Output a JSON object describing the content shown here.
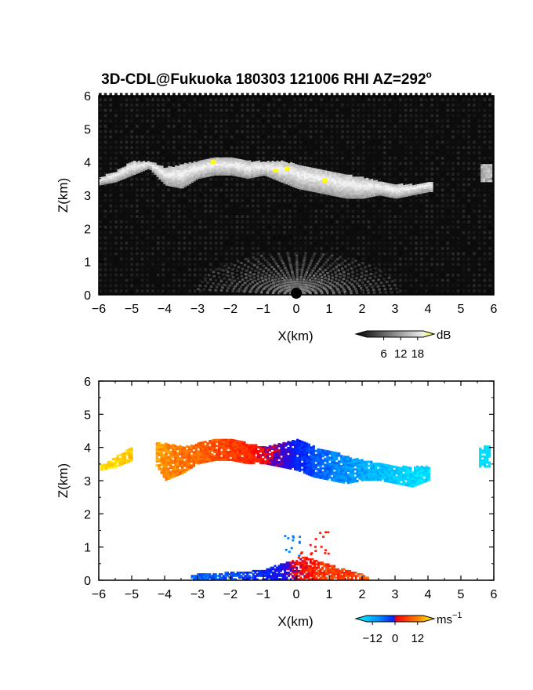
{
  "title": "3D-CDL@Fukuoka 180303 121006 RHI AZ=292",
  "title_suffix": "o",
  "chart_data": [
    {
      "type": "heatmap",
      "panel": "reflectivity",
      "xlabel": "X(km)",
      "ylabel": "Z(km)",
      "xlim": [
        -6,
        6
      ],
      "ylim": [
        0,
        6
      ],
      "xticks": [
        "-6",
        "-5",
        "-4",
        "-3",
        "-2",
        "-1",
        "0",
        "1",
        "2",
        "3",
        "4",
        "5",
        "6"
      ],
      "yticks": [
        "0",
        "1",
        "2",
        "3",
        "4",
        "5",
        "6"
      ],
      "colorbar": {
        "unit": "dB",
        "ticks": [
          "6",
          "12",
          "18"
        ],
        "range": [
          0,
          20
        ],
        "palette": "grayscale-to-yellow"
      },
      "layer": {
        "x": [
          -6.0,
          -5.5,
          -5.0,
          -4.5,
          -4.0,
          -3.5,
          -3.0,
          -2.5,
          -2.0,
          -1.5,
          -1.0,
          -0.5,
          0.0,
          0.5,
          1.0,
          1.5,
          2.0,
          2.5,
          3.0,
          3.5,
          4.0
        ],
        "base_km": [
          3.3,
          3.4,
          3.6,
          3.8,
          3.3,
          3.2,
          3.5,
          3.6,
          3.6,
          3.5,
          3.6,
          3.4,
          3.2,
          3.1,
          3.0,
          2.9,
          2.9,
          3.0,
          2.9,
          3.0,
          3.1
        ],
        "top_km": [
          3.5,
          3.7,
          4.0,
          4.0,
          3.8,
          3.9,
          4.0,
          4.1,
          4.1,
          4.0,
          4.0,
          4.0,
          3.9,
          3.8,
          3.7,
          3.6,
          3.5,
          3.4,
          3.3,
          3.3,
          3.4
        ]
      }
    },
    {
      "type": "heatmap",
      "panel": "doppler velocity",
      "xlabel": "X(km)",
      "ylabel": "Z(km)",
      "xlim": [
        -6,
        6
      ],
      "ylim": [
        0,
        6
      ],
      "xticks": [
        "-6",
        "-5",
        "-4",
        "-3",
        "-2",
        "-1",
        "0",
        "1",
        "2",
        "3",
        "4",
        "5",
        "6"
      ],
      "yticks": [
        "0",
        "1",
        "2",
        "3",
        "4",
        "5",
        "6"
      ],
      "colorbar": {
        "unit": "ms",
        "unit_exp": "-1",
        "ticks": [
          "-12",
          "0",
          "12"
        ],
        "range": [
          -15,
          15
        ],
        "palette": "cyan-blue-red-yellow"
      },
      "layer": {
        "x": [
          -6.0,
          -5.5,
          -5.0,
          -4.5,
          -4.0,
          -3.5,
          -3.0,
          -2.5,
          -2.0,
          -1.5,
          -1.0,
          -0.5,
          0.0,
          0.5,
          1.0,
          1.5,
          2.0,
          2.5,
          3.0,
          3.5,
          4.0
        ],
        "velocity_ms": [
          14,
          13,
          12,
          11,
          9,
          8,
          7,
          6,
          5,
          4,
          2,
          0,
          -4,
          -6,
          -8,
          -9,
          -10,
          -11,
          -12,
          -13,
          -13
        ]
      },
      "low_echo": {
        "x": [
          -3.2,
          -2.5,
          -2.0,
          -1.5,
          -1.0,
          -0.5,
          0.0,
          0.5,
          1.0,
          1.5,
          2.0
        ],
        "velocity_ms": [
          -7,
          -7,
          -6,
          -5,
          -4,
          -3,
          2,
          4,
          5,
          5,
          6
        ]
      }
    }
  ]
}
